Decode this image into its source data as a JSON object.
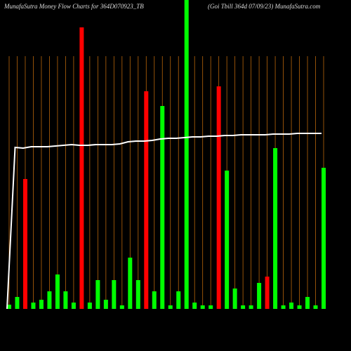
{
  "chart_data": {
    "type": "bar",
    "title": "MunafaSutra  Money Flow  Charts for 364D070923_TB",
    "subtitle": "(Goi   Tbill 364d 07/09/23) MunafaSutra.com",
    "categories": [
      null,
      null,
      null,
      null,
      null,
      null,
      null,
      null,
      null,
      null,
      null,
      null,
      null,
      null,
      null,
      null,
      null,
      null,
      null,
      null,
      null,
      null,
      null,
      null,
      null,
      null,
      null,
      null,
      null,
      null,
      null,
      null,
      null,
      null,
      null,
      null,
      null,
      null,
      null,
      null
    ],
    "values": [
      6,
      17,
      185,
      9,
      13,
      25,
      49,
      25,
      9,
      401,
      9,
      41,
      13,
      41,
      5,
      73,
      41,
      310,
      25,
      289,
      5,
      25,
      445,
      9,
      5,
      5,
      317,
      197,
      29,
      5,
      5,
      37,
      46,
      229,
      5,
      9,
      5,
      17,
      5,
      201
    ],
    "colors": [
      "#00ff00",
      "#00ff00",
      "#ff0000",
      "#00ff00",
      "#00ff00",
      "#00ff00",
      "#00ff00",
      "#00ff00",
      "#00ff00",
      "#ff0000",
      "#00ff00",
      "#00ff00",
      "#00ff00",
      "#00ff00",
      "#00ff00",
      "#00ff00",
      "#00ff00",
      "#ff0000",
      "#00ff00",
      "#00ff00",
      "#00ff00",
      "#00ff00",
      "#00ff00",
      "#00ff00",
      "#00ff00",
      "#00ff00",
      "#ff0000",
      "#00ff00",
      "#00ff00",
      "#00ff00",
      "#00ff00",
      "#00ff00",
      "#ff0000",
      "#00ff00",
      "#00ff00",
      "#00ff00",
      "#00ff00",
      "#00ff00",
      "#00ff00",
      "#00ff00"
    ],
    "line": {
      "color": "#ffffff",
      "values": [
        0,
        230,
        229,
        231,
        231,
        231,
        232,
        233,
        234,
        233,
        233,
        234,
        234,
        234,
        235,
        238,
        239,
        239,
        240,
        242,
        243,
        243,
        244,
        245,
        245,
        246,
        246,
        247,
        247,
        248,
        248,
        248,
        248,
        249,
        249,
        249,
        250,
        250,
        250,
        250
      ]
    },
    "ylim": [
      0,
      440
    ],
    "grid_color": "#b8650a"
  }
}
